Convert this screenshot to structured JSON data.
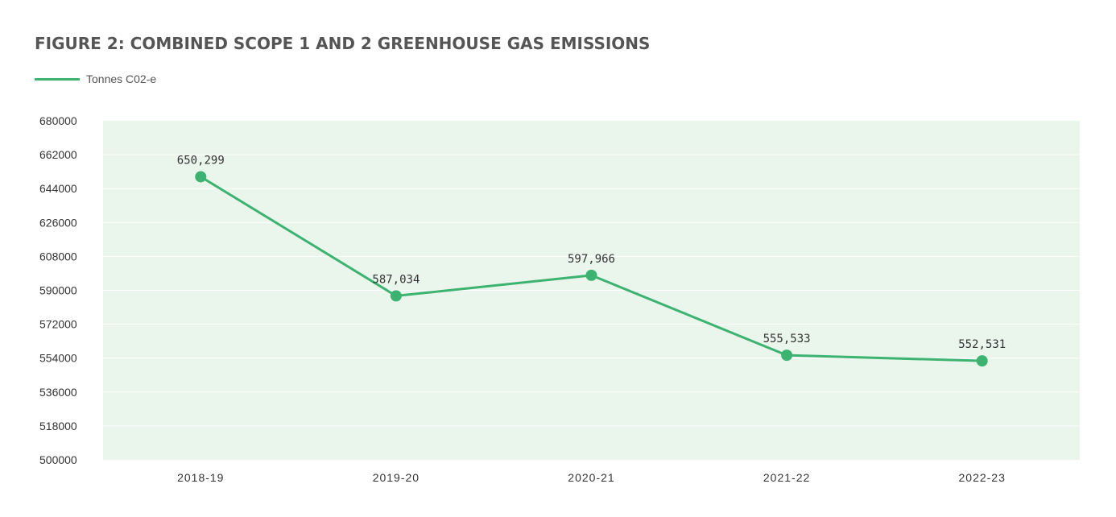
{
  "chart_data": {
    "type": "line",
    "title": "FIGURE 2: COMBINED SCOPE 1 AND 2 GREENHOUSE GAS EMISSIONS",
    "xlabel": "",
    "ylabel": "",
    "categories": [
      "2018-19",
      "2019-20",
      "2020-21",
      "2021-22",
      "2022-23"
    ],
    "series": [
      {
        "name": "Tonnes C02-e",
        "values": [
          650299,
          587034,
          597966,
          555533,
          552531
        ],
        "labels": [
          "650,299",
          "587,034",
          "597,966",
          "555,533",
          "552,531"
        ],
        "color": "#3cb371"
      }
    ],
    "ylim": [
      500000,
      680000
    ],
    "yticks": [
      "500000",
      "518000",
      "536000",
      "554000",
      "572000",
      "590000",
      "608000",
      "626000",
      "644000",
      "662000",
      "680000"
    ],
    "grid": true,
    "legend": "top-left",
    "plot_background": "#eaf5ec",
    "gridline_color": "#ffffff"
  }
}
